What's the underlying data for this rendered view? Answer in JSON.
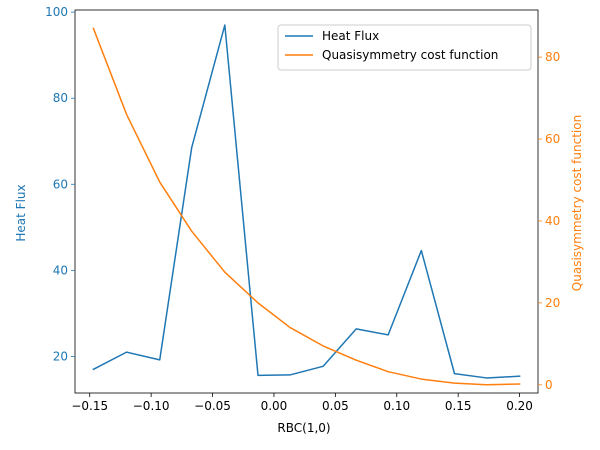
{
  "chart_data": {
    "type": "line",
    "title": "",
    "xlabel": "RBC(1,0)",
    "ylabel_left": "Heat Flux",
    "ylabel_right": "Quasisymmetry cost function",
    "xlim": [
      -0.162,
      0.215
    ],
    "ylim_left": [
      11.5,
      100.5
    ],
    "ylim_right": [
      -2.0,
      91.5
    ],
    "xticks": [
      "−0.15",
      "−0.10",
      "−0.05",
      "0.00",
      "0.05",
      "0.10",
      "0.15",
      "0.20"
    ],
    "xtick_values": [
      -0.15,
      -0.1,
      -0.05,
      0.0,
      0.05,
      0.1,
      0.15,
      0.2
    ],
    "yticks_left": [
      "20",
      "40",
      "60",
      "80",
      "100"
    ],
    "ytick_values_left": [
      20,
      40,
      60,
      80,
      100
    ],
    "yticks_right": [
      "0",
      "20",
      "40",
      "60",
      "80"
    ],
    "ytick_values_right": [
      0,
      20,
      40,
      60,
      80
    ],
    "legend_position": "top-right",
    "grid": false,
    "series": [
      {
        "name": "Heat Flux",
        "axis": "left",
        "color": "#1f77b4",
        "x": [
          -0.147,
          -0.12,
          -0.093,
          -0.067,
          -0.04,
          -0.013,
          0.013,
          0.04,
          0.067,
          0.093,
          0.12,
          0.147,
          0.173,
          0.2
        ],
        "y": [
          17.0,
          21.0,
          19.2,
          68.5,
          97.0,
          15.6,
          15.7,
          17.7,
          26.4,
          25.0,
          44.6,
          16.0,
          15.0,
          15.4
        ]
      },
      {
        "name": "Quasisymmetry cost function",
        "axis": "right",
        "color": "#ff7f0e",
        "x": [
          -0.147,
          -0.12,
          -0.093,
          -0.067,
          -0.04,
          -0.013,
          0.013,
          0.04,
          0.067,
          0.093,
          0.12,
          0.147,
          0.173,
          0.2
        ],
        "y": [
          87.0,
          66.0,
          49.5,
          37.5,
          27.5,
          20.0,
          14.0,
          9.5,
          6.0,
          3.2,
          1.4,
          0.4,
          0.0,
          0.2
        ]
      }
    ]
  }
}
